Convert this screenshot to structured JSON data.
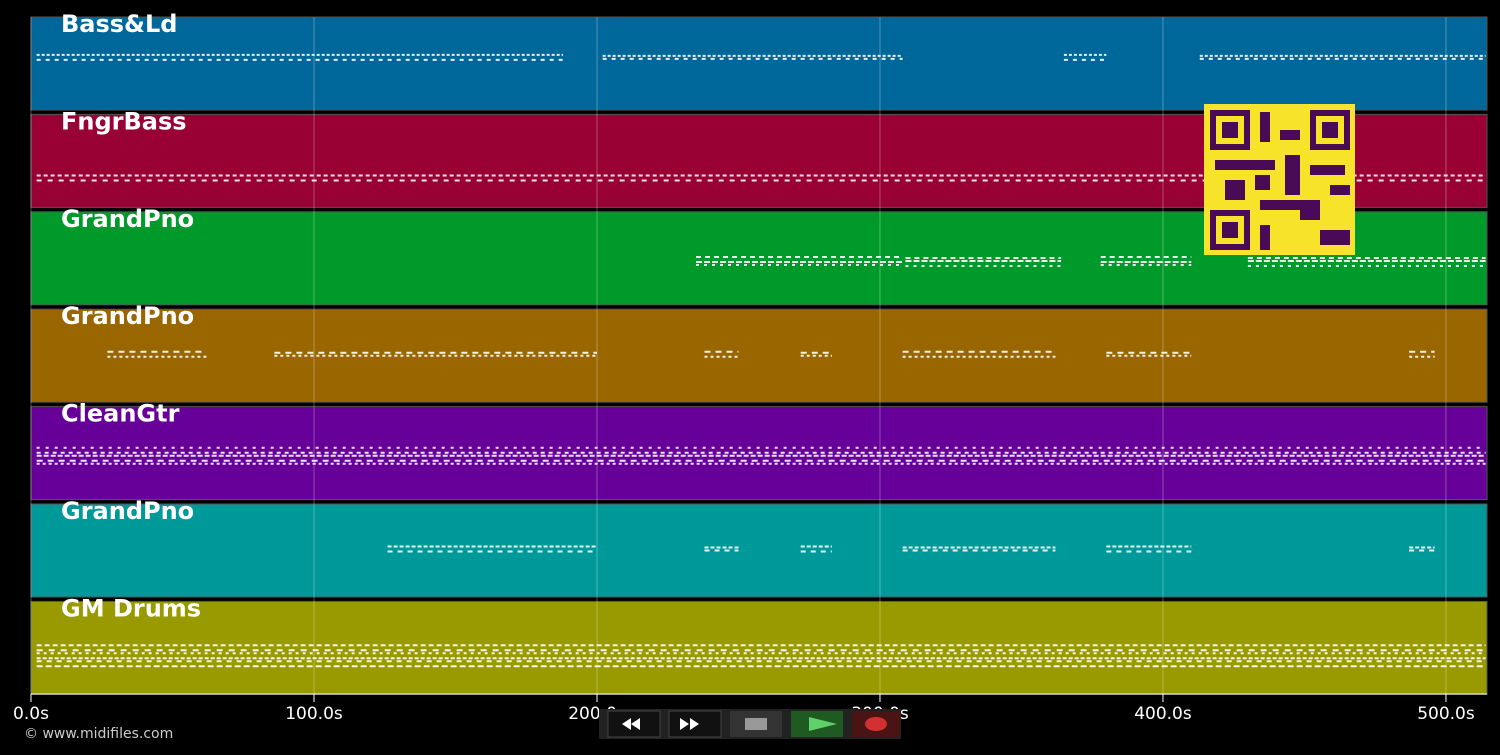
{
  "timeline": {
    "xlim": [
      0,
      514.5
    ],
    "ticks": [
      {
        "value": 0,
        "label": "0.0s"
      },
      {
        "value": 100,
        "label": "100.0s"
      },
      {
        "value": 200,
        "label": "200.0s"
      },
      {
        "value": 300,
        "label": "300.0s"
      },
      {
        "value": 400,
        "label": "400.0s"
      },
      {
        "value": 500,
        "label": "500.0s"
      }
    ]
  },
  "tracks": [
    {
      "name": "Bass&Ld",
      "color": "#00679a",
      "segments": [
        [
          2,
          188
        ],
        [
          202,
          308
        ],
        [
          365,
          380
        ],
        [
          413,
          514
        ]
      ]
    },
    {
      "name": "FngrBass",
      "color": "#990033",
      "segments": [
        [
          2,
          514
        ]
      ]
    },
    {
      "name": "GrandPno",
      "color": "#009a2a",
      "segments": [
        [
          235,
          308
        ],
        [
          309,
          364
        ],
        [
          378,
          410
        ],
        [
          430,
          514
        ]
      ]
    },
    {
      "name": "GrandPno",
      "color": "#996600",
      "segments": [
        [
          27,
          62
        ],
        [
          86,
          200
        ],
        [
          238,
          250
        ],
        [
          272,
          283
        ],
        [
          308,
          362
        ],
        [
          380,
          410
        ],
        [
          487,
          496
        ]
      ]
    },
    {
      "name": "CleanGtr",
      "color": "#660099",
      "segments": [
        [
          2,
          514
        ]
      ]
    },
    {
      "name": "GrandPno",
      "color": "#009999",
      "segments": [
        [
          126,
          200
        ],
        [
          238,
          250
        ],
        [
          272,
          283
        ],
        [
          308,
          362
        ],
        [
          380,
          410
        ],
        [
          487,
          496
        ]
      ]
    },
    {
      "name": "GM Drums",
      "color": "#999900",
      "segments": [
        [
          2,
          514
        ]
      ]
    }
  ],
  "footer": {
    "copyright": "© www.midifiles.com"
  }
}
